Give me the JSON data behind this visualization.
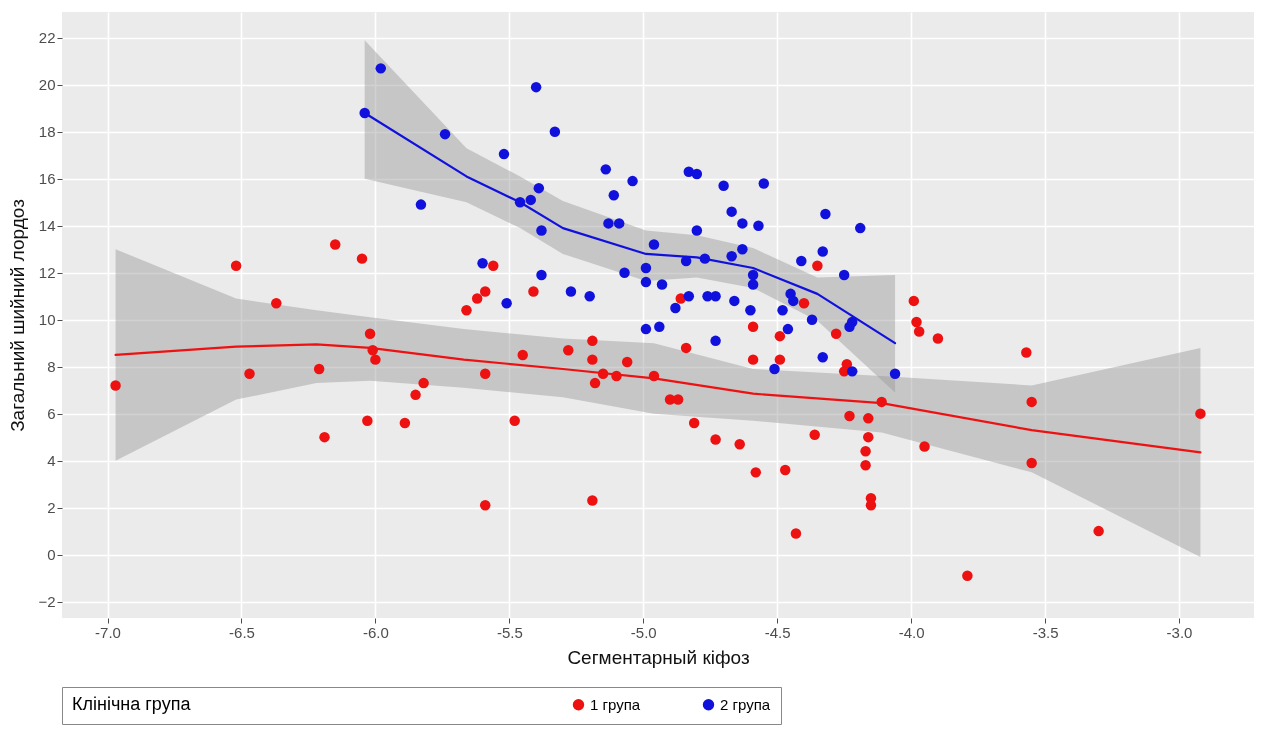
{
  "chart_data": {
    "type": "scatter",
    "xlabel": "Сегментарный кіфоз",
    "ylabel": "Загальний шийний лордоз",
    "legend_title": "Клінічна група",
    "legend": "bottom",
    "grid": true,
    "xlim": [
      -7.17,
      -2.72
    ],
    "ylim": [
      -2.7,
      23.1
    ],
    "xticks": [
      {
        "value": -7,
        "label": "-7.0"
      },
      {
        "value": -6.5,
        "label": "-6.5"
      },
      {
        "value": -6,
        "label": "-6.0"
      },
      {
        "value": -5.5,
        "label": "-5.5"
      },
      {
        "value": -5,
        "label": "-5.0"
      },
      {
        "value": -4.5,
        "label": "-4.5"
      },
      {
        "value": -4,
        "label": "-4.0"
      },
      {
        "value": -3.5,
        "label": "-3.5"
      },
      {
        "value": -3,
        "label": "-3.0"
      }
    ],
    "yticks": [
      -2,
      0,
      2,
      4,
      6,
      8,
      10,
      12,
      14,
      16,
      18,
      20,
      22
    ],
    "series": [
      {
        "name": "1 група",
        "color": "#ee1111",
        "marker": "circle",
        "x": [
          -6.97,
          -6.52,
          -6.47,
          -6.37,
          -6.21,
          -6.19,
          -6.15,
          -6.05,
          -6.03,
          -6.02,
          -6.01,
          -6.0,
          -5.89,
          -5.85,
          -5.82,
          -5.66,
          -5.62,
          -5.59,
          -5.56,
          -5.59,
          -5.48,
          -5.59,
          -5.45,
          -5.41,
          -5.28,
          -5.19,
          -5.19,
          -5.18,
          -5.19,
          -5.15,
          -5.1,
          -5.06,
          -4.96,
          -4.9,
          -4.87,
          -4.86,
          -4.84,
          -4.81,
          -4.73,
          -4.64,
          -4.58,
          -4.59,
          -4.59,
          -4.49,
          -4.49,
          -4.47,
          -4.43,
          -4.4,
          -4.35,
          -4.36,
          -4.28,
          -4.24,
          -4.25,
          -4.23,
          -4.16,
          -4.16,
          -4.17,
          -4.17,
          -4.15,
          -4.15,
          -4.11,
          -3.99,
          -3.98,
          -3.97,
          -3.9,
          -3.95,
          -3.79,
          -3.57,
          -3.55,
          -3.55,
          -3.3,
          -2.92
        ],
        "values": [
          7.2,
          12.3,
          7.7,
          10.7,
          7.9,
          5.0,
          13.2,
          12.6,
          5.7,
          9.4,
          8.7,
          8.3,
          5.6,
          6.8,
          7.3,
          10.4,
          10.9,
          11.2,
          12.3,
          7.7,
          5.7,
          2.1,
          8.5,
          11.2,
          8.7,
          9.1,
          8.3,
          7.3,
          2.3,
          7.7,
          7.6,
          8.2,
          7.6,
          6.6,
          6.6,
          10.9,
          8.8,
          5.6,
          4.9,
          4.7,
          3.5,
          9.7,
          8.3,
          9.3,
          8.3,
          3.6,
          0.9,
          10.7,
          12.3,
          5.1,
          9.4,
          8.1,
          7.8,
          5.9,
          5.8,
          5.0,
          4.4,
          3.8,
          2.4,
          2.1,
          6.5,
          10.8,
          9.9,
          9.5,
          9.2,
          4.6,
          -0.9,
          8.6,
          6.5,
          3.9,
          1.0,
          6.0
        ]
      },
      {
        "name": "2 група",
        "color": "#1111dd",
        "marker": "circle",
        "x": [
          -6.04,
          -5.98,
          -5.74,
          -5.83,
          -5.4,
          -5.33,
          -5.52,
          -5.14,
          -5.04,
          -5.11,
          -5.39,
          -5.42,
          -5.46,
          -5.38,
          -5.13,
          -5.09,
          -4.96,
          -4.83,
          -4.8,
          -4.7,
          -4.67,
          -4.63,
          -4.57,
          -4.8,
          -4.63,
          -4.67,
          -4.77,
          -4.84,
          -4.99,
          -4.99,
          -4.93,
          -5.07,
          -4.59,
          -4.59,
          -5.38,
          -5.6,
          -5.27,
          -5.2,
          -5.51,
          -4.83,
          -4.88,
          -4.76,
          -4.73,
          -4.66,
          -4.6,
          -4.99,
          -4.94,
          -4.73,
          -4.55,
          -4.32,
          -4.19,
          -4.41,
          -4.33,
          -4.25,
          -4.45,
          -4.44,
          -4.48,
          -4.37,
          -4.46,
          -4.22,
          -4.23,
          -4.33,
          -4.51,
          -4.22,
          -4.06
        ],
        "values": [
          18.8,
          20.7,
          17.9,
          14.9,
          19.9,
          18.0,
          17.05,
          16.4,
          15.9,
          15.3,
          15.6,
          15.1,
          15.0,
          13.8,
          14.1,
          14.1,
          13.2,
          16.3,
          16.2,
          15.7,
          14.6,
          14.1,
          14.0,
          13.8,
          13.0,
          12.7,
          12.6,
          12.5,
          12.2,
          11.6,
          11.5,
          12.0,
          11.9,
          11.5,
          11.9,
          12.4,
          11.2,
          11.0,
          10.7,
          11.0,
          10.5,
          11.0,
          11.0,
          10.8,
          10.4,
          9.6,
          9.7,
          9.1,
          15.8,
          14.5,
          13.9,
          12.5,
          12.9,
          11.9,
          11.1,
          10.8,
          10.4,
          10.0,
          9.6,
          9.9,
          9.7,
          8.4,
          7.9,
          7.8,
          7.7
        ]
      },
      {
        "type": "line",
        "color": "#ee1111",
        "marker": "none",
        "x": [
          -6.97,
          -6.52,
          -6.22,
          -6.02,
          -5.67,
          -5.3,
          -4.96,
          -4.59,
          -4.11,
          -3.55,
          -2.92
        ],
        "values": [
          8.5,
          8.85,
          8.95,
          8.8,
          8.3,
          7.9,
          7.5,
          6.85,
          6.45,
          5.3,
          4.35
        ],
        "lower": [
          4.0,
          6.6,
          7.3,
          7.4,
          7.1,
          6.7,
          6.0,
          5.7,
          5.2,
          3.5,
          -0.1
        ],
        "upper": [
          13.0,
          10.9,
          10.4,
          10.1,
          9.6,
          9.2,
          9.0,
          7.9,
          7.6,
          7.2,
          8.8
        ]
      },
      {
        "type": "line",
        "color": "#1111dd",
        "marker": "none",
        "x": [
          -6.04,
          -5.66,
          -5.46,
          -5.3,
          -4.99,
          -4.8,
          -4.59,
          -4.35,
          -4.06
        ],
        "values": [
          18.8,
          16.1,
          15.0,
          13.9,
          12.8,
          12.65,
          12.2,
          11.1,
          9.0
        ],
        "lower": [
          16.0,
          15.0,
          13.9,
          12.8,
          11.65,
          11.8,
          11.35,
          9.95,
          6.9
        ],
        "upper": [
          21.9,
          17.3,
          16.1,
          15.05,
          13.8,
          13.6,
          13.05,
          11.8,
          11.9
        ]
      }
    ]
  }
}
